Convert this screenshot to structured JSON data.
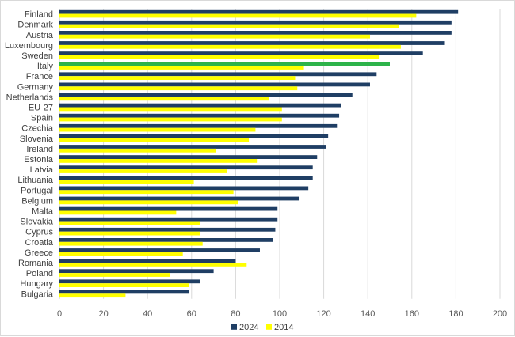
{
  "chart_data": {
    "type": "bar",
    "orientation": "horizontal",
    "categories": [
      "Finland",
      "Denmark",
      "Austria",
      "Luxembourg",
      "Sweden",
      "Italy",
      "France",
      "Germany",
      "Netherlands",
      "EU-27",
      "Spain",
      "Czechia",
      "Slovenia",
      "Ireland",
      "Estonia",
      "Latvia",
      "Lithuania",
      "Portugal",
      "Belgium",
      "Malta",
      "Slovakia",
      "Cyprus",
      "Croatia",
      "Greece",
      "Romania",
      "Poland",
      "Hungary",
      "Bulgaria"
    ],
    "series": [
      {
        "name": "2024",
        "color": "#1f3e64",
        "values": [
          181,
          178,
          178,
          175,
          165,
          150,
          144,
          141,
          133,
          128,
          127,
          126,
          122,
          121,
          117,
          115,
          115,
          113,
          109,
          99,
          99,
          98,
          97,
          91,
          80,
          70,
          64,
          59
        ]
      },
      {
        "name": "2014",
        "color": "#ffff00",
        "values": [
          162,
          154,
          141,
          155,
          145,
          111,
          107,
          108,
          95,
          101,
          101,
          89,
          86,
          71,
          90,
          76,
          61,
          79,
          81,
          53,
          64,
          64,
          65,
          56,
          85,
          50,
          59,
          30
        ]
      }
    ],
    "highlight": {
      "category": "Italy",
      "series": "2024",
      "color": "#2db34a"
    },
    "xlim": [
      0,
      200
    ],
    "x_ticks": [
      "0",
      "20",
      "40",
      "60",
      "80",
      "100",
      "120",
      "140",
      "160",
      "180",
      "200"
    ],
    "grid": "vertical",
    "legend_position": "bottom-center"
  }
}
